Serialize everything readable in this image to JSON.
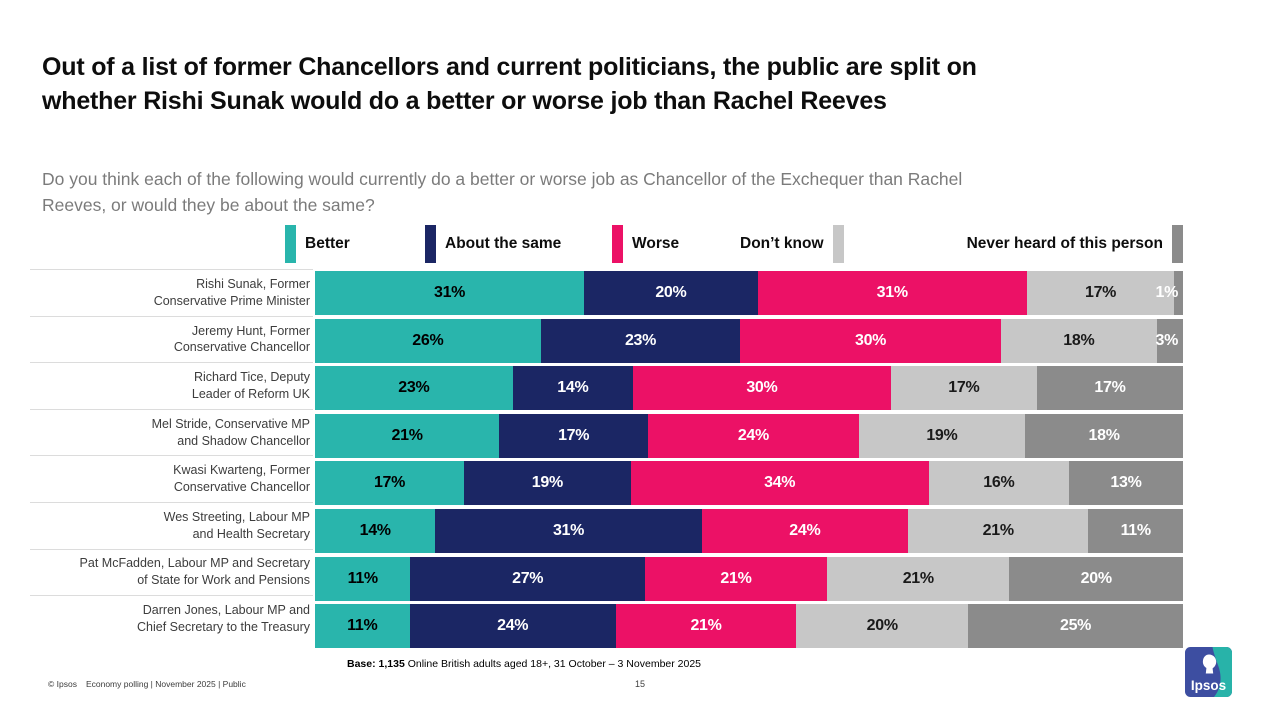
{
  "slide": {
    "title_line1": "Out of a list of former Chancellors and current politicians, the public are split on",
    "title_line2": "whether Rishi Sunak would do a better or worse job than Rachel Reeves",
    "question_line1": "Do you think each of the following would currently do a better or worse job as Chancellor of the Exchequer than Rachel",
    "question_line2": "Reeves, or would they be about the same?",
    "base_bold": "Base: 1,135",
    "base_rest": " Online British adults aged 18+, 31 October – 3 November 2025",
    "footer_copyright": "© Ipsos",
    "footer_meta": "Economy polling | November 2025 | Public",
    "page_number": "15",
    "logo_text": "Ipsos"
  },
  "colors": {
    "better": "#29B5AC",
    "about_the_same": "#1B2664",
    "worse": "#EC1166",
    "dont_know": "#C7C7C7",
    "never_heard": "#8B8B8B",
    "logo_blue": "#3D4EA1",
    "logo_teal": "#28B3A9"
  },
  "legend": [
    {
      "label": "Better",
      "color": "#29B5AC",
      "swatch_position": "before"
    },
    {
      "label": "About the same",
      "color": "#1B2664",
      "swatch_position": "before"
    },
    {
      "label": "Worse",
      "color": "#EC1166",
      "swatch_position": "before"
    },
    {
      "label": "Don’t know",
      "color": "#C7C7C7",
      "swatch_position": "after"
    },
    {
      "label": "Never heard of this person",
      "color": "#8B8B8B",
      "swatch_position": "after"
    }
  ],
  "chart_data": {
    "type": "bar",
    "variant": "horizontal-stacked-100",
    "unit": "%",
    "xlim": [
      0,
      100
    ],
    "grid": false,
    "legend_position": "top",
    "series_names": [
      "Better",
      "About the same",
      "Worse",
      "Don’t know",
      "Never heard of this person"
    ],
    "series_colors": [
      "#29B5AC",
      "#1B2664",
      "#EC1166",
      "#C7C7C7",
      "#8B8B8B"
    ],
    "series_label_colors": [
      "#000000",
      "#ffffff",
      "#ffffff",
      "#1a1a1a",
      "#ffffff"
    ],
    "categories": [
      "Rishi Sunak, Former Conservative Prime Minister",
      "Jeremy Hunt, Former Conservative Chancellor",
      "Richard Tice, Deputy Leader of Reform UK",
      "Mel Stride, Conservative MP and Shadow Chancellor",
      "Kwasi Kwarteng, Former Conservative Chancellor",
      "Wes Streeting, Labour MP and Health Secretary",
      "Pat McFadden, Labour MP and Secretary of State for Work and Pensions",
      "Darren Jones, Labour MP and Chief Secretary to the Treasury"
    ],
    "rows": [
      {
        "category": "Rishi Sunak, Former Conservative Prime Minister",
        "label_lines": [
          "Rishi Sunak, Former",
          "Conservative Prime Minister"
        ],
        "values": [
          31,
          20,
          31,
          17,
          1
        ],
        "value_labels": [
          "31%",
          "20%",
          "31%",
          "17%",
          "1%"
        ]
      },
      {
        "category": "Jeremy Hunt, Former Conservative Chancellor",
        "label_lines": [
          "Jeremy Hunt, Former",
          "Conservative Chancellor"
        ],
        "values": [
          26,
          23,
          30,
          18,
          3
        ],
        "value_labels": [
          "26%",
          "23%",
          "30%",
          "18%",
          "3%"
        ]
      },
      {
        "category": "Richard Tice, Deputy Leader of Reform UK",
        "label_lines": [
          "Richard Tice, Deputy",
          "Leader of Reform UK"
        ],
        "values": [
          23,
          14,
          30,
          17,
          17
        ],
        "value_labels": [
          "23%",
          "14%",
          "30%",
          "17%",
          "17%"
        ]
      },
      {
        "category": "Mel Stride, Conservative MP and Shadow Chancellor",
        "label_lines": [
          "Mel Stride, Conservative MP",
          "and Shadow Chancellor"
        ],
        "values": [
          21,
          17,
          24,
          19,
          18
        ],
        "value_labels": [
          "21%",
          "17%",
          "24%",
          "19%",
          "18%"
        ]
      },
      {
        "category": "Kwasi Kwarteng, Former Conservative Chancellor",
        "label_lines": [
          "Kwasi Kwarteng, Former",
          "Conservative Chancellor"
        ],
        "values": [
          17,
          19,
          34,
          16,
          13
        ],
        "value_labels": [
          "17%",
          "19%",
          "34%",
          "16%",
          "13%"
        ]
      },
      {
        "category": "Wes Streeting, Labour MP and Health Secretary",
        "label_lines": [
          "Wes Streeting, Labour MP",
          "and Health Secretary"
        ],
        "values": [
          14,
          31,
          24,
          21,
          11
        ],
        "value_labels": [
          "14%",
          "31%",
          "24%",
          "21%",
          "11%"
        ]
      },
      {
        "category": "Pat McFadden, Labour MP and Secretary of State for Work and Pensions",
        "label_lines": [
          "Pat McFadden, Labour MP and Secretary",
          "of State for Work and Pensions"
        ],
        "values": [
          11,
          27,
          21,
          21,
          20
        ],
        "value_labels": [
          "11%",
          "27%",
          "21%",
          "21%",
          "20%"
        ]
      },
      {
        "category": "Darren Jones, Labour MP and Chief Secretary to the Treasury",
        "label_lines": [
          "Darren Jones, Labour MP and",
          "Chief Secretary to the Treasury"
        ],
        "values": [
          11,
          24,
          21,
          20,
          25
        ],
        "value_labels": [
          "11%",
          "24%",
          "21%",
          "20%",
          "25%"
        ]
      }
    ]
  }
}
